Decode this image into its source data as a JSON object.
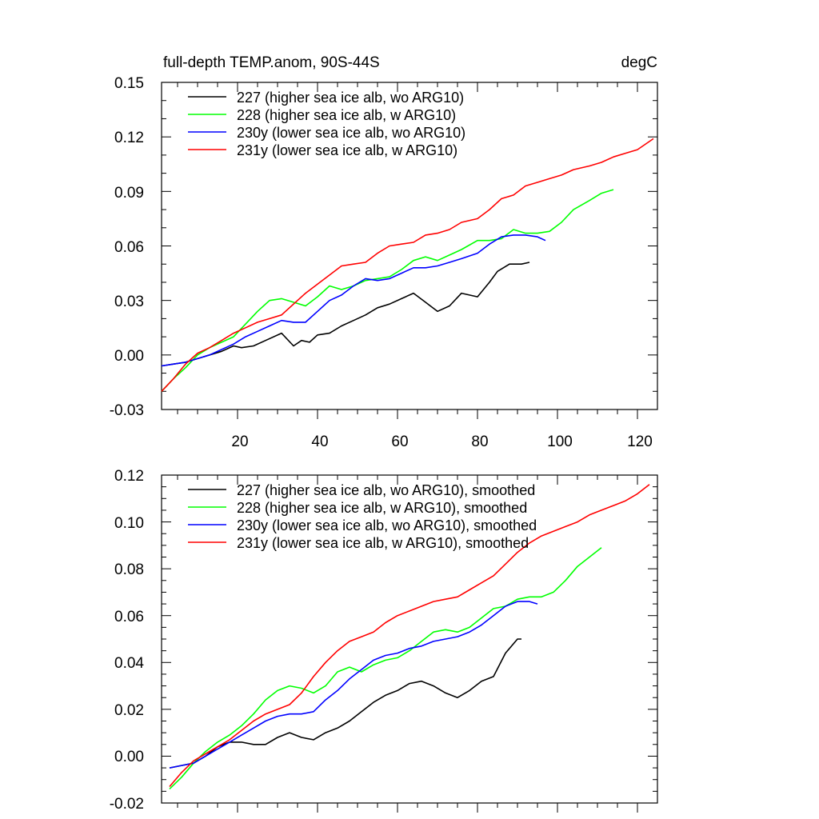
{
  "chart_data": [
    {
      "type": "line",
      "title": "full-depth TEMP.anom, 90S-44S",
      "units": "degC",
      "xlabel": "",
      "ylabel": "",
      "xlim": [
        1,
        125
      ],
      "ylim": [
        -0.03,
        0.15
      ],
      "yticks": [
        "-0.03",
        "0.00",
        "0.03",
        "0.06",
        "0.09",
        "0.12",
        "0.15"
      ],
      "xticks": [
        "20",
        "40",
        "60",
        "80",
        "100",
        "120"
      ],
      "legend_position": "top-left",
      "series": [
        {
          "name": "227 (higher sea ice alb, wo ARG10)",
          "color": "#000000",
          "x": [
            1,
            4,
            7,
            10,
            13,
            16,
            19,
            21,
            24,
            27,
            31,
            34,
            36,
            38,
            40,
            43,
            46,
            49,
            52,
            55,
            58,
            61,
            64,
            67,
            70,
            73,
            76,
            80,
            83,
            85,
            88,
            91,
            93
          ],
          "y": [
            -0.006,
            -0.005,
            -0.004,
            -0.002,
            0.0,
            0.002,
            0.005,
            0.004,
            0.005,
            0.008,
            0.012,
            0.005,
            0.008,
            0.007,
            0.011,
            0.012,
            0.016,
            0.019,
            0.022,
            0.026,
            0.028,
            0.031,
            0.034,
            0.029,
            0.024,
            0.027,
            0.034,
            0.032,
            0.04,
            0.046,
            0.05,
            0.05,
            0.051
          ]
        },
        {
          "name": "228 (higher sea ice alb, w ARG10)",
          "color": "#00ff00",
          "x": [
            1,
            4,
            7,
            10,
            13,
            16,
            19,
            22,
            25,
            28,
            31,
            34,
            37,
            40,
            43,
            46,
            49,
            52,
            55,
            58,
            61,
            64,
            67,
            70,
            73,
            76,
            80,
            83,
            86,
            89,
            92,
            95,
            98,
            101,
            104,
            108,
            111,
            114
          ],
          "y": [
            -0.02,
            -0.013,
            -0.007,
            0.0,
            0.004,
            0.007,
            0.01,
            0.017,
            0.024,
            0.03,
            0.031,
            0.029,
            0.027,
            0.032,
            0.038,
            0.036,
            0.038,
            0.041,
            0.042,
            0.043,
            0.047,
            0.052,
            0.054,
            0.052,
            0.055,
            0.058,
            0.063,
            0.063,
            0.064,
            0.069,
            0.067,
            0.067,
            0.068,
            0.073,
            0.08,
            0.085,
            0.089,
            0.091
          ]
        },
        {
          "name": "230y (lower sea ice alb, wo ARG10)",
          "color": "#0000ff",
          "x": [
            1,
            4,
            7,
            10,
            13,
            16,
            19,
            22,
            25,
            28,
            31,
            34,
            37,
            40,
            43,
            46,
            49,
            52,
            55,
            58,
            61,
            64,
            67,
            70,
            73,
            76,
            80,
            83,
            86,
            89,
            92,
            95,
            97
          ],
          "y": [
            -0.006,
            -0.005,
            -0.004,
            -0.002,
            0.0,
            0.003,
            0.006,
            0.01,
            0.013,
            0.016,
            0.019,
            0.018,
            0.018,
            0.024,
            0.03,
            0.033,
            0.038,
            0.042,
            0.041,
            0.042,
            0.045,
            0.048,
            0.048,
            0.049,
            0.051,
            0.053,
            0.056,
            0.061,
            0.065,
            0.066,
            0.066,
            0.065,
            0.063
          ]
        },
        {
          "name": "231y (lower sea ice alb, w ARG10)",
          "color": "#ff0000",
          "x": [
            1,
            4,
            7,
            10,
            13,
            16,
            19,
            22,
            25,
            28,
            31,
            34,
            37,
            40,
            43,
            46,
            49,
            52,
            55,
            58,
            61,
            64,
            67,
            70,
            73,
            76,
            80,
            83,
            86,
            89,
            92,
            95,
            98,
            101,
            104,
            108,
            111,
            114,
            117,
            120,
            124
          ],
          "y": [
            -0.02,
            -0.013,
            -0.005,
            0.001,
            0.004,
            0.008,
            0.012,
            0.015,
            0.018,
            0.02,
            0.022,
            0.028,
            0.034,
            0.039,
            0.044,
            0.049,
            0.05,
            0.051,
            0.056,
            0.06,
            0.061,
            0.062,
            0.066,
            0.067,
            0.069,
            0.073,
            0.075,
            0.08,
            0.086,
            0.088,
            0.093,
            0.095,
            0.097,
            0.099,
            0.102,
            0.104,
            0.106,
            0.109,
            0.111,
            0.113,
            0.119
          ]
        }
      ]
    },
    {
      "type": "line",
      "title": "",
      "units": "",
      "xlabel": "",
      "ylabel": "",
      "xlim": [
        1,
        125
      ],
      "ylim": [
        -0.02,
        0.12
      ],
      "yticks": [
        "-0.02",
        "0.00",
        "0.02",
        "0.04",
        "0.06",
        "0.08",
        "0.10",
        "0.12"
      ],
      "xticks": [],
      "legend_position": "top-left",
      "series": [
        {
          "name": "227 (higher sea ice alb, wo ARG10), smoothed",
          "color": "#000000",
          "x": [
            3,
            6,
            9,
            12,
            15,
            18,
            21,
            24,
            27,
            30,
            33,
            36,
            39,
            42,
            45,
            48,
            51,
            54,
            57,
            60,
            63,
            66,
            69,
            72,
            75,
            78,
            81,
            84,
            87,
            90,
            91
          ],
          "y": [
            -0.005,
            -0.004,
            -0.003,
            0.0,
            0.004,
            0.006,
            0.006,
            0.005,
            0.005,
            0.008,
            0.01,
            0.008,
            0.007,
            0.01,
            0.012,
            0.015,
            0.019,
            0.023,
            0.026,
            0.028,
            0.031,
            0.032,
            0.03,
            0.027,
            0.025,
            0.028,
            0.032,
            0.034,
            0.044,
            0.05,
            0.05
          ]
        },
        {
          "name": "228 (higher sea ice alb, w ARG10), smoothed",
          "color": "#00ff00",
          "x": [
            3,
            6,
            9,
            12,
            15,
            18,
            21,
            24,
            27,
            30,
            33,
            36,
            39,
            42,
            45,
            48,
            51,
            54,
            57,
            60,
            63,
            66,
            69,
            72,
            75,
            78,
            81,
            84,
            87,
            90,
            93,
            96,
            99,
            102,
            105,
            108,
            111
          ],
          "y": [
            -0.014,
            -0.009,
            -0.003,
            0.002,
            0.006,
            0.009,
            0.013,
            0.018,
            0.024,
            0.028,
            0.03,
            0.029,
            0.027,
            0.03,
            0.036,
            0.038,
            0.036,
            0.039,
            0.041,
            0.042,
            0.045,
            0.049,
            0.053,
            0.054,
            0.053,
            0.055,
            0.059,
            0.063,
            0.064,
            0.067,
            0.068,
            0.068,
            0.07,
            0.075,
            0.081,
            0.085,
            0.089
          ]
        },
        {
          "name": "230y (lower sea ice alb, wo ARG10), smoothed",
          "color": "#0000ff",
          "x": [
            3,
            6,
            9,
            12,
            15,
            18,
            21,
            24,
            27,
            30,
            33,
            36,
            39,
            42,
            45,
            48,
            51,
            54,
            57,
            60,
            63,
            66,
            69,
            72,
            75,
            78,
            81,
            84,
            87,
            90,
            93,
            95
          ],
          "y": [
            -0.005,
            -0.004,
            -0.003,
            0.0,
            0.003,
            0.006,
            0.009,
            0.012,
            0.015,
            0.017,
            0.018,
            0.018,
            0.019,
            0.024,
            0.028,
            0.033,
            0.037,
            0.041,
            0.043,
            0.044,
            0.046,
            0.047,
            0.049,
            0.05,
            0.051,
            0.053,
            0.056,
            0.06,
            0.064,
            0.066,
            0.066,
            0.065
          ]
        },
        {
          "name": "231y (lower sea ice alb, w ARG10), smoothed",
          "color": "#ff0000",
          "x": [
            3,
            6,
            9,
            12,
            15,
            18,
            21,
            24,
            27,
            30,
            33,
            36,
            39,
            42,
            45,
            48,
            51,
            54,
            57,
            60,
            63,
            66,
            69,
            72,
            75,
            78,
            81,
            84,
            87,
            90,
            93,
            96,
            99,
            102,
            105,
            108,
            111,
            114,
            117,
            120,
            123
          ],
          "y": [
            -0.013,
            -0.007,
            -0.002,
            0.001,
            0.004,
            0.007,
            0.011,
            0.015,
            0.018,
            0.02,
            0.022,
            0.027,
            0.034,
            0.04,
            0.045,
            0.049,
            0.051,
            0.053,
            0.057,
            0.06,
            0.062,
            0.064,
            0.066,
            0.067,
            0.068,
            0.071,
            0.074,
            0.077,
            0.082,
            0.087,
            0.091,
            0.094,
            0.096,
            0.098,
            0.1,
            0.103,
            0.105,
            0.107,
            0.109,
            0.112,
            0.116
          ]
        }
      ]
    }
  ]
}
